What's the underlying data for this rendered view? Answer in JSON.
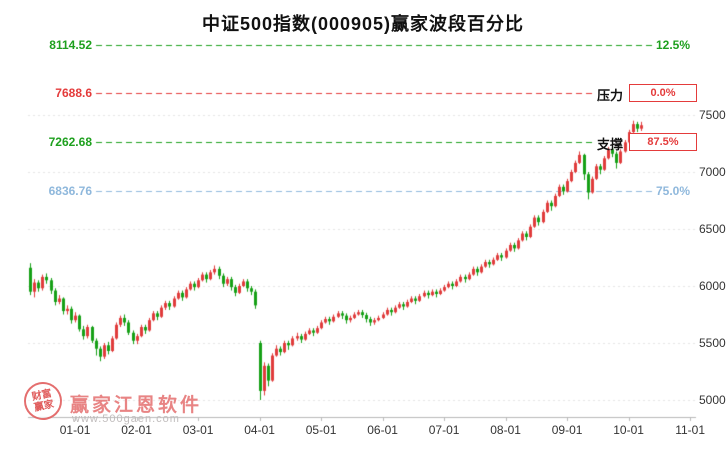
{
  "title": "中证500指数(000905)赢家波段百分比",
  "watermark": {
    "seal_top": "财富",
    "seal_bottom": "赢家",
    "brand": "赢家江恩软件",
    "url": "www.500gaen.com"
  },
  "chart_data": {
    "type": "candlestick",
    "title": "中证500指数(000905)赢家波段百分比",
    "symbol": "中证500指数",
    "code": "000905",
    "legend_position": "none",
    "grid": "horizontal-dotted",
    "y_axis": {
      "ticks": [
        7500,
        7000,
        6500,
        6000,
        5500,
        5000
      ],
      "range_shown": [
        5000,
        8200
      ]
    },
    "x_axis": {
      "labels": [
        "01-01",
        "02-01",
        "03-01",
        "04-01",
        "05-01",
        "06-01",
        "07-01",
        "08-01",
        "09-01",
        "10-01",
        "11-01"
      ],
      "tick_indices": [
        11,
        26,
        41,
        56,
        71,
        86,
        101,
        116,
        131,
        146,
        161
      ]
    },
    "levels": [
      {
        "value": 8114.52,
        "price_label": "8114.52",
        "pct_label": "12.5%",
        "color": "#1ea01e",
        "kind": "plain"
      },
      {
        "value": 7688.6,
        "price_label": "7688.6",
        "pct_label": "0.0%",
        "side_label": "压力",
        "color": "#e43b3b",
        "kind": "boxed"
      },
      {
        "value": 7262.68,
        "price_label": "7262.68",
        "pct_label": "87.5%",
        "side_label": "支撑",
        "color": "#1ea01e",
        "kind": "boxed"
      },
      {
        "value": 6836.76,
        "price_label": "6836.76",
        "pct_label": "75.0%",
        "color": "#8fb8dc",
        "kind": "plain"
      }
    ],
    "colors": {
      "up": "#e03c3c",
      "down": "#16a016",
      "grid": "#e4e4e4",
      "axis": "#b8b8b8",
      "axis_text": "#333333"
    },
    "candles": [
      [
        6160,
        6200,
        5920,
        5950
      ],
      [
        5950,
        6060,
        5900,
        6030
      ],
      [
        6030,
        6050,
        5950,
        5980
      ],
      [
        5980,
        6100,
        5960,
        6080
      ],
      [
        6080,
        6110,
        6020,
        6050
      ],
      [
        6050,
        6070,
        5930,
        5960
      ],
      [
        5960,
        5980,
        5830,
        5860
      ],
      [
        5860,
        5920,
        5840,
        5890
      ],
      [
        5890,
        5900,
        5750,
        5780
      ],
      [
        5780,
        5830,
        5750,
        5800
      ],
      [
        5800,
        5820,
        5670,
        5700
      ],
      [
        5700,
        5770,
        5680,
        5740
      ],
      [
        5740,
        5750,
        5600,
        5620
      ],
      [
        5620,
        5650,
        5530,
        5560
      ],
      [
        5560,
        5660,
        5540,
        5640
      ],
      [
        5640,
        5650,
        5500,
        5520
      ],
      [
        5520,
        5540,
        5390,
        5450
      ],
      [
        5450,
        5470,
        5340,
        5380
      ],
      [
        5380,
        5500,
        5360,
        5480
      ],
      [
        5480,
        5510,
        5400,
        5430
      ],
      [
        5430,
        5560,
        5420,
        5540
      ],
      [
        5540,
        5680,
        5530,
        5660
      ],
      [
        5660,
        5740,
        5640,
        5720
      ],
      [
        5720,
        5750,
        5650,
        5680
      ],
      [
        5680,
        5700,
        5570,
        5590
      ],
      [
        5590,
        5610,
        5490,
        5520
      ],
      [
        5520,
        5580,
        5490,
        5560
      ],
      [
        5560,
        5660,
        5550,
        5640
      ],
      [
        5640,
        5660,
        5580,
        5610
      ],
      [
        5610,
        5720,
        5600,
        5700
      ],
      [
        5700,
        5780,
        5690,
        5760
      ],
      [
        5760,
        5780,
        5700,
        5730
      ],
      [
        5730,
        5830,
        5720,
        5810
      ],
      [
        5810,
        5870,
        5790,
        5850
      ],
      [
        5850,
        5870,
        5790,
        5820
      ],
      [
        5820,
        5910,
        5810,
        5890
      ],
      [
        5890,
        5960,
        5880,
        5940
      ],
      [
        5940,
        5960,
        5870,
        5900
      ],
      [
        5900,
        5990,
        5890,
        5970
      ],
      [
        5970,
        6040,
        5960,
        6020
      ],
      [
        6020,
        6040,
        5960,
        5990
      ],
      [
        5990,
        6070,
        5980,
        6050
      ],
      [
        6050,
        6120,
        6040,
        6100
      ],
      [
        6100,
        6120,
        6030,
        6060
      ],
      [
        6060,
        6140,
        6050,
        6120
      ],
      [
        6120,
        6180,
        6100,
        6150
      ],
      [
        6150,
        6170,
        6060,
        6090
      ],
      [
        6090,
        6110,
        5990,
        6020
      ],
      [
        6020,
        6080,
        6000,
        6060
      ],
      [
        6060,
        6080,
        5960,
        5990
      ],
      [
        5990,
        6010,
        5910,
        5940
      ],
      [
        5940,
        6020,
        5930,
        6000
      ],
      [
        6000,
        6060,
        5990,
        6040
      ],
      [
        6040,
        6060,
        5950,
        5980
      ],
      [
        5980,
        6000,
        5920,
        5950
      ],
      [
        5950,
        5970,
        5800,
        5830
      ],
      [
        5500,
        5520,
        5000,
        5080
      ],
      [
        5080,
        5330,
        5040,
        5300
      ],
      [
        5300,
        5320,
        5120,
        5170
      ],
      [
        5170,
        5410,
        5160,
        5390
      ],
      [
        5390,
        5480,
        5380,
        5450
      ],
      [
        5450,
        5470,
        5390,
        5420
      ],
      [
        5420,
        5520,
        5410,
        5500
      ],
      [
        5500,
        5520,
        5440,
        5480
      ],
      [
        5480,
        5560,
        5470,
        5540
      ],
      [
        5540,
        5590,
        5520,
        5560
      ],
      [
        5560,
        5580,
        5500,
        5530
      ],
      [
        5530,
        5600,
        5520,
        5580
      ],
      [
        5580,
        5630,
        5570,
        5610
      ],
      [
        5610,
        5630,
        5560,
        5590
      ],
      [
        5590,
        5650,
        5580,
        5630
      ],
      [
        5630,
        5700,
        5620,
        5680
      ],
      [
        5680,
        5730,
        5670,
        5710
      ],
      [
        5710,
        5730,
        5660,
        5690
      ],
      [
        5690,
        5750,
        5680,
        5730
      ],
      [
        5730,
        5780,
        5720,
        5760
      ],
      [
        5760,
        5780,
        5710,
        5740
      ],
      [
        5740,
        5760,
        5670,
        5700
      ],
      [
        5700,
        5740,
        5680,
        5720
      ],
      [
        5720,
        5770,
        5710,
        5750
      ],
      [
        5750,
        5790,
        5740,
        5770
      ],
      [
        5770,
        5790,
        5720,
        5745
      ],
      [
        5745,
        5765,
        5680,
        5710
      ],
      [
        5710,
        5730,
        5650,
        5680
      ],
      [
        5680,
        5720,
        5660,
        5700
      ],
      [
        5700,
        5740,
        5690,
        5720
      ],
      [
        5720,
        5770,
        5710,
        5750
      ],
      [
        5750,
        5810,
        5740,
        5790
      ],
      [
        5790,
        5810,
        5740,
        5770
      ],
      [
        5770,
        5830,
        5760,
        5810
      ],
      [
        5810,
        5860,
        5800,
        5840
      ],
      [
        5840,
        5860,
        5790,
        5820
      ],
      [
        5820,
        5880,
        5810,
        5860
      ],
      [
        5860,
        5910,
        5850,
        5890
      ],
      [
        5890,
        5910,
        5840,
        5870
      ],
      [
        5870,
        5930,
        5860,
        5910
      ],
      [
        5910,
        5960,
        5900,
        5940
      ],
      [
        5940,
        5960,
        5890,
        5920
      ],
      [
        5920,
        5970,
        5910,
        5950
      ],
      [
        5950,
        5970,
        5900,
        5930
      ],
      [
        5930,
        5980,
        5920,
        5960
      ],
      [
        5960,
        6010,
        5950,
        5990
      ],
      [
        5990,
        6040,
        5980,
        6020
      ],
      [
        6020,
        6040,
        5970,
        6000
      ],
      [
        6000,
        6060,
        5990,
        6040
      ],
      [
        6040,
        6100,
        6030,
        6080
      ],
      [
        6080,
        6100,
        6030,
        6060
      ],
      [
        6060,
        6120,
        6050,
        6100
      ],
      [
        6100,
        6170,
        6090,
        6150
      ],
      [
        6150,
        6170,
        6090,
        6120
      ],
      [
        6120,
        6190,
        6110,
        6170
      ],
      [
        6170,
        6230,
        6160,
        6210
      ],
      [
        6210,
        6230,
        6160,
        6190
      ],
      [
        6190,
        6250,
        6180,
        6230
      ],
      [
        6230,
        6290,
        6220,
        6270
      ],
      [
        6270,
        6290,
        6220,
        6250
      ],
      [
        6250,
        6330,
        6240,
        6310
      ],
      [
        6310,
        6380,
        6300,
        6360
      ],
      [
        6360,
        6380,
        6300,
        6330
      ],
      [
        6330,
        6420,
        6320,
        6400
      ],
      [
        6400,
        6480,
        6390,
        6460
      ],
      [
        6460,
        6480,
        6400,
        6430
      ],
      [
        6430,
        6540,
        6420,
        6520
      ],
      [
        6520,
        6620,
        6510,
        6600
      ],
      [
        6600,
        6620,
        6530,
        6560
      ],
      [
        6560,
        6670,
        6550,
        6650
      ],
      [
        6650,
        6750,
        6640,
        6730
      ],
      [
        6730,
        6750,
        6660,
        6700
      ],
      [
        6700,
        6810,
        6690,
        6790
      ],
      [
        6790,
        6890,
        6780,
        6870
      ],
      [
        6870,
        6890,
        6800,
        6830
      ],
      [
        6830,
        6940,
        6820,
        6920
      ],
      [
        6920,
        7020,
        6910,
        7000
      ],
      [
        7000,
        7100,
        6990,
        7080
      ],
      [
        7080,
        7180,
        7070,
        7150
      ],
      [
        7150,
        7160,
        6930,
        6980
      ],
      [
        6980,
        7000,
        6760,
        6820
      ],
      [
        6820,
        6960,
        6810,
        6940
      ],
      [
        6940,
        7070,
        6930,
        7050
      ],
      [
        7050,
        7070,
        6980,
        7020
      ],
      [
        7020,
        7140,
        7010,
        7120
      ],
      [
        7120,
        7220,
        7110,
        7200
      ],
      [
        7200,
        7220,
        7130,
        7160
      ],
      [
        7160,
        7180,
        7030,
        7080
      ],
      [
        7080,
        7200,
        7070,
        7180
      ],
      [
        7180,
        7280,
        7170,
        7260
      ],
      [
        7260,
        7370,
        7250,
        7350
      ],
      [
        7350,
        7450,
        7340,
        7420
      ],
      [
        7420,
        7440,
        7350,
        7380
      ],
      [
        7380,
        7440,
        7360,
        7410
      ]
    ]
  }
}
